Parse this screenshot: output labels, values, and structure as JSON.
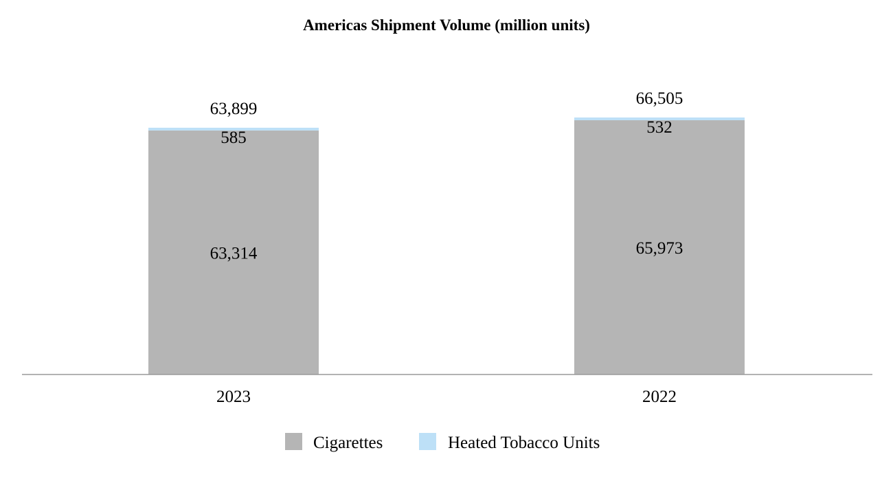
{
  "chart_data": {
    "type": "bar",
    "stacked": true,
    "title": "Americas Shipment Volume (million units)",
    "categories": [
      "2023",
      "2022"
    ],
    "series": [
      {
        "name": "Cigarettes",
        "values": [
          63314,
          65973
        ],
        "labels": [
          "63,314",
          "65,973"
        ],
        "color": "#b5b5b5"
      },
      {
        "name": "Heated Tobacco Units",
        "values": [
          585,
          532
        ],
        "labels": [
          "585",
          "532"
        ],
        "color": "#bde0f7"
      }
    ],
    "totals": [
      63899,
      66505
    ],
    "total_labels": [
      "63,899",
      "66,505"
    ],
    "ylim": [
      0,
      66505
    ],
    "grid": false,
    "legend": "bottom",
    "axis_color": "#9a9a9a"
  }
}
